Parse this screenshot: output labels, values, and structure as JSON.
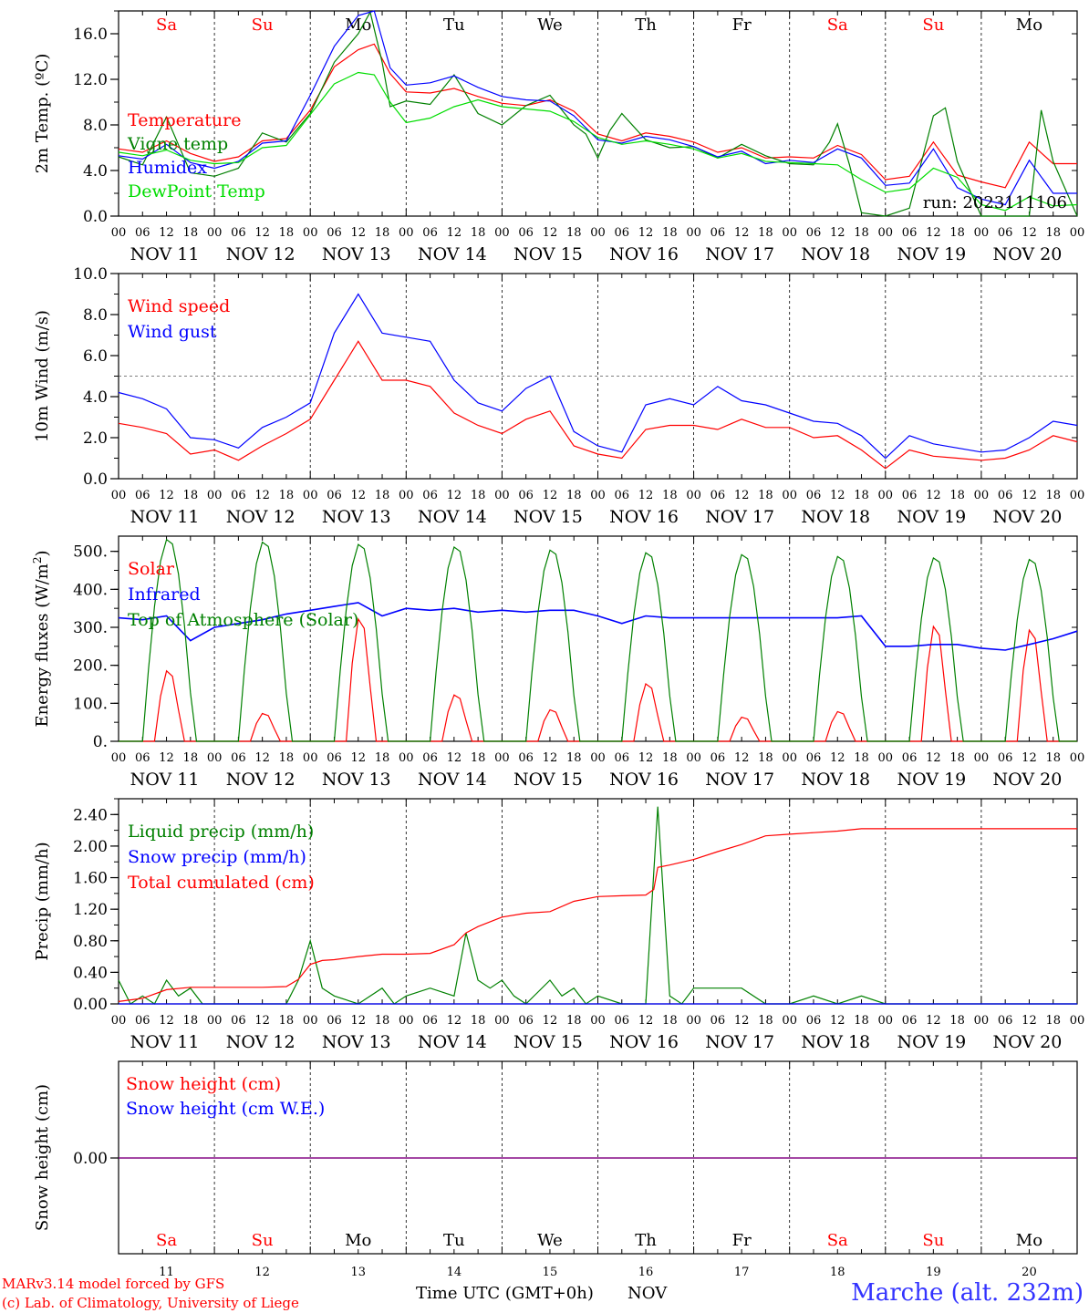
{
  "station": "Marche (alt. 232m)",
  "credit_line1": "MARv3.14 model forced by GFS",
  "credit_line2": "(c) Lab. of Climatology, University of Liege",
  "run_label": "run: 2023111106",
  "xlabel": "Time UTC (GMT+0h)",
  "month_label": "NOV",
  "hour_ticks": [
    "00",
    "06",
    "12",
    "18"
  ],
  "days": [
    {
      "date": "NOV 11",
      "dow": "Sa",
      "num": "11",
      "weekend": true
    },
    {
      "date": "NOV 12",
      "dow": "Su",
      "num": "12",
      "weekend": true
    },
    {
      "date": "NOV 13",
      "dow": "Mo",
      "num": "13",
      "weekend": false
    },
    {
      "date": "NOV 14",
      "dow": "Tu",
      "num": "14",
      "weekend": false
    },
    {
      "date": "NOV 15",
      "dow": "We",
      "num": "15",
      "weekend": false
    },
    {
      "date": "NOV 16",
      "dow": "Th",
      "num": "16",
      "weekend": false
    },
    {
      "date": "NOV 17",
      "dow": "Fr",
      "num": "17",
      "weekend": false
    },
    {
      "date": "NOV 18",
      "dow": "Sa",
      "num": "18",
      "weekend": true
    },
    {
      "date": "NOV 19",
      "dow": "Su",
      "num": "19",
      "weekend": true
    },
    {
      "date": "NOV 20",
      "dow": "Mo",
      "num": "20",
      "weekend": false
    }
  ],
  "colors": {
    "red": "#ff0000",
    "green": "#008000",
    "blue": "#0000ff",
    "lightgreen": "#00dd00",
    "weekend": "#ff0000",
    "snowline": "#800080",
    "station": "#3333ff"
  },
  "chart_data": [
    {
      "type": "line",
      "ylabel": "2m Temp. (ºC)",
      "ylim": [
        0,
        18
      ],
      "yticks": [
        0,
        4,
        8,
        12,
        16
      ],
      "ytick_labels": [
        "0.0",
        "4.0",
        "8.0",
        "12.0",
        "16.0"
      ],
      "x_unit": "hours since NOV 11 00 UTC",
      "series": [
        {
          "name": "Temperature",
          "color": "#ff0000",
          "x": [
            0,
            6,
            12,
            18,
            24,
            30,
            36,
            42,
            48,
            54,
            60,
            64,
            68,
            72,
            78,
            84,
            90,
            96,
            102,
            108,
            114,
            120,
            126,
            132,
            138,
            144,
            150,
            156,
            162,
            168,
            174,
            180,
            186,
            192,
            198,
            204,
            210,
            216,
            222,
            228,
            234,
            240
          ],
          "y": [
            5.9,
            5.6,
            6.6,
            5.5,
            4.8,
            5.2,
            6.6,
            6.8,
            9.3,
            13.1,
            14.6,
            15.1,
            12.5,
            10.9,
            10.8,
            11.2,
            10.5,
            9.9,
            9.7,
            10.2,
            9.2,
            7.2,
            6.6,
            7.3,
            7.0,
            6.5,
            5.6,
            6.0,
            5.1,
            5.2,
            5.1,
            6.2,
            5.4,
            3.2,
            3.5,
            6.5,
            3.6,
            3.0,
            2.5,
            6.5,
            4.6,
            4.6
          ]
        },
        {
          "name": "Vigne temp",
          "color": "#008000",
          "x": [
            0,
            6,
            12,
            18,
            24,
            30,
            36,
            42,
            48,
            54,
            60,
            63,
            66,
            68,
            72,
            78,
            84,
            90,
            96,
            102,
            108,
            114,
            117,
            120,
            123,
            126,
            132,
            138,
            144,
            150,
            156,
            162,
            168,
            174,
            178,
            180,
            183,
            186,
            192,
            198,
            204,
            207,
            210,
            216,
            222,
            228,
            231,
            234,
            240
          ],
          "y": [
            5.2,
            4.5,
            8.7,
            3.8,
            3.5,
            4.2,
            7.3,
            6.5,
            9.0,
            13.5,
            16.0,
            17.9,
            13.5,
            9.6,
            10.1,
            9.8,
            12.4,
            9.0,
            8.0,
            9.7,
            10.6,
            8.0,
            7.2,
            5.1,
            7.5,
            9.0,
            6.7,
            6.0,
            6.1,
            5.1,
            6.3,
            5.3,
            4.6,
            4.5,
            6.5,
            8.1,
            4.5,
            0.3,
            0.0,
            0.7,
            8.8,
            9.5,
            4.8,
            0.0,
            0.0,
            0.0,
            9.3,
            4.8,
            0.0
          ]
        },
        {
          "name": "Humidex",
          "color": "#0000ff",
          "x": [
            0,
            6,
            12,
            18,
            24,
            30,
            36,
            42,
            48,
            54,
            60,
            64,
            68,
            72,
            78,
            84,
            90,
            96,
            102,
            108,
            114,
            120,
            126,
            132,
            138,
            144,
            150,
            156,
            162,
            168,
            174,
            180,
            186,
            192,
            198,
            204,
            210,
            216,
            222,
            228,
            234,
            240
          ],
          "y": [
            5.3,
            5.0,
            6.3,
            4.7,
            4.2,
            4.8,
            6.4,
            6.6,
            10.6,
            14.9,
            17.6,
            18.0,
            13.0,
            11.5,
            11.7,
            12.3,
            11.3,
            10.5,
            10.2,
            10.1,
            8.8,
            6.7,
            6.4,
            7.0,
            6.7,
            6.1,
            5.2,
            5.7,
            4.6,
            4.9,
            4.7,
            5.9,
            5.1,
            2.7,
            2.9,
            5.9,
            2.5,
            1.5,
            1.0,
            4.9,
            2.0,
            2.0
          ]
        },
        {
          "name": "DewPoint Temp",
          "color": "#00dd00",
          "x": [
            0,
            6,
            12,
            18,
            24,
            30,
            36,
            42,
            48,
            54,
            60,
            64,
            68,
            72,
            78,
            84,
            90,
            96,
            102,
            108,
            114,
            120,
            126,
            132,
            138,
            144,
            150,
            156,
            162,
            168,
            174,
            180,
            186,
            192,
            198,
            204,
            210,
            216,
            222,
            228,
            234,
            240
          ],
          "y": [
            5.6,
            5.3,
            5.8,
            4.9,
            4.6,
            4.7,
            6.0,
            6.2,
            8.9,
            11.6,
            12.6,
            12.4,
            10.0,
            8.2,
            8.6,
            9.6,
            10.2,
            9.6,
            9.4,
            9.2,
            8.3,
            6.9,
            6.3,
            6.6,
            6.3,
            5.9,
            5.1,
            5.5,
            4.8,
            4.7,
            4.6,
            4.5,
            3.2,
            2.1,
            2.4,
            4.2,
            3.4,
            1.0,
            0.5,
            1.7,
            0.9,
            1.0
          ]
        }
      ]
    },
    {
      "type": "line",
      "ylabel": "10m Wind (m/s)",
      "ylim": [
        0,
        10
      ],
      "yticks": [
        0,
        2,
        4,
        6,
        8,
        10
      ],
      "ytick_labels": [
        "0.0",
        "2.0",
        "4.0",
        "6.0",
        "8.0",
        "10.0"
      ],
      "reference_line": 5,
      "series": [
        {
          "name": "Wind speed",
          "color": "#ff0000",
          "x": [
            0,
            6,
            12,
            18,
            24,
            30,
            36,
            42,
            48,
            54,
            60,
            66,
            72,
            78,
            84,
            90,
            96,
            102,
            108,
            114,
            120,
            126,
            132,
            138,
            144,
            150,
            156,
            162,
            168,
            174,
            180,
            186,
            192,
            198,
            204,
            210,
            216,
            222,
            228,
            234,
            240
          ],
          "y": [
            2.7,
            2.5,
            2.2,
            1.2,
            1.4,
            0.9,
            1.6,
            2.2,
            2.9,
            4.8,
            6.7,
            4.8,
            4.8,
            4.5,
            3.2,
            2.6,
            2.2,
            2.9,
            3.3,
            1.6,
            1.2,
            1.0,
            2.4,
            2.6,
            2.6,
            2.4,
            2.9,
            2.5,
            2.5,
            2.0,
            2.1,
            1.4,
            0.5,
            1.4,
            1.1,
            1.0,
            0.9,
            1.0,
            1.4,
            2.1,
            1.8
          ]
        },
        {
          "name": "Wind gust",
          "color": "#0000ff",
          "x": [
            0,
            6,
            12,
            18,
            24,
            30,
            36,
            42,
            48,
            54,
            60,
            66,
            72,
            78,
            84,
            90,
            96,
            102,
            108,
            114,
            120,
            126,
            132,
            138,
            144,
            150,
            156,
            162,
            168,
            174,
            180,
            186,
            192,
            198,
            204,
            210,
            216,
            222,
            228,
            234,
            240
          ],
          "y": [
            4.2,
            3.9,
            3.4,
            2.0,
            1.9,
            1.5,
            2.5,
            3.0,
            3.7,
            7.1,
            9.0,
            7.1,
            6.9,
            6.7,
            4.8,
            3.7,
            3.3,
            4.4,
            5.0,
            2.3,
            1.6,
            1.3,
            3.6,
            3.9,
            3.6,
            4.5,
            3.8,
            3.6,
            3.2,
            2.8,
            2.7,
            2.1,
            1.0,
            2.1,
            1.7,
            1.5,
            1.3,
            1.4,
            2.0,
            2.8,
            2.6
          ]
        }
      ]
    },
    {
      "type": "line",
      "ylabel": "Energy fluxes (W/m²)",
      "ylim": [
        0,
        540
      ],
      "yticks": [
        0,
        100,
        200,
        300,
        400,
        500
      ],
      "ytick_labels": [
        "0.",
        "100.",
        "200.",
        "300.",
        "400.",
        "500."
      ],
      "series": [
        {
          "name": "Solar",
          "color": "#ff0000",
          "peaks": [
            190,
            75,
            330,
            125,
            85,
            155,
            65,
            80,
            310,
            300
          ]
        },
        {
          "name": "Infrared",
          "color": "#0000ff",
          "x": [
            0,
            6,
            12,
            18,
            24,
            30,
            36,
            42,
            48,
            54,
            60,
            66,
            72,
            78,
            84,
            90,
            96,
            102,
            108,
            114,
            120,
            126,
            132,
            138,
            144,
            150,
            156,
            162,
            168,
            174,
            180,
            186,
            192,
            198,
            204,
            210,
            216,
            222,
            228,
            234,
            240
          ],
          "y": [
            325,
            320,
            330,
            265,
            300,
            310,
            320,
            335,
            345,
            355,
            365,
            330,
            350,
            345,
            350,
            340,
            345,
            340,
            345,
            345,
            330,
            310,
            330,
            325,
            325,
            325,
            325,
            325,
            325,
            325,
            325,
            330,
            250,
            250,
            255,
            255,
            245,
            240,
            255,
            270,
            290
          ]
        },
        {
          "name": "Top of Atmosphere (Solar)",
          "color": "#008000",
          "peaks": [
            535,
            528,
            522,
            515,
            507,
            500,
            495,
            490,
            486,
            482
          ]
        }
      ]
    },
    {
      "type": "line",
      "ylabel": "Precip (mm/h)",
      "ylim": [
        0,
        2.6
      ],
      "yticks": [
        0,
        0.4,
        0.8,
        1.2,
        1.6,
        2.0,
        2.4
      ],
      "ytick_labels": [
        "0.00",
        "0.40",
        "0.80",
        "1.20",
        "1.60",
        "2.00",
        "2.40"
      ],
      "series": [
        {
          "name": "Liquid precip (mm/h)",
          "color": "#008000",
          "x": [
            0,
            3,
            6,
            9,
            12,
            15,
            18,
            21,
            24,
            30,
            36,
            42,
            45,
            48,
            51,
            54,
            60,
            66,
            69,
            72,
            78,
            84,
            87,
            90,
            93,
            96,
            99,
            102,
            108,
            111,
            114,
            117,
            120,
            126,
            132,
            135,
            138,
            141,
            144,
            150,
            156,
            162,
            168,
            174,
            180,
            186,
            192,
            198,
            204,
            210,
            216,
            222,
            228,
            234,
            240
          ],
          "y": [
            0.3,
            0.0,
            0.1,
            0.0,
            0.3,
            0.1,
            0.2,
            0.0,
            0.0,
            0.0,
            0.0,
            0.0,
            0.3,
            0.8,
            0.2,
            0.1,
            0.0,
            0.2,
            0.0,
            0.1,
            0.2,
            0.1,
            0.9,
            0.3,
            0.2,
            0.3,
            0.1,
            0.0,
            0.3,
            0.1,
            0.2,
            0.0,
            0.1,
            0.0,
            0.0,
            2.5,
            0.1,
            0.0,
            0.2,
            0.2,
            0.2,
            0.0,
            0.0,
            0.1,
            0.0,
            0.1,
            0.0,
            0.0,
            0.0,
            0.0,
            0.0,
            0.0,
            0.0,
            0.0,
            0.0
          ]
        },
        {
          "name": "Snow precip (mm/h)",
          "color": "#0000ff",
          "x": [
            0,
            240
          ],
          "y": [
            0,
            0
          ]
        },
        {
          "name": "Total cumulated (cm)",
          "color": "#ff0000",
          "x": [
            0,
            6,
            12,
            18,
            24,
            36,
            42,
            45,
            48,
            51,
            54,
            60,
            66,
            72,
            78,
            84,
            87,
            90,
            96,
            102,
            108,
            114,
            120,
            126,
            132,
            134,
            135,
            138,
            144,
            150,
            156,
            162,
            168,
            174,
            180,
            186,
            192,
            198,
            204,
            210,
            216,
            222,
            228,
            234,
            240
          ],
          "y": [
            0.03,
            0.07,
            0.18,
            0.21,
            0.21,
            0.21,
            0.22,
            0.31,
            0.5,
            0.55,
            0.56,
            0.6,
            0.63,
            0.63,
            0.64,
            0.75,
            0.9,
            0.98,
            1.1,
            1.15,
            1.17,
            1.3,
            1.36,
            1.37,
            1.38,
            1.45,
            1.73,
            1.76,
            1.83,
            1.93,
            2.02,
            2.13,
            2.15,
            2.17,
            2.19,
            2.22,
            2.22,
            2.22,
            2.22,
            2.22,
            2.22,
            2.22,
            2.22,
            2.22,
            2.22
          ]
        }
      ]
    },
    {
      "type": "line",
      "ylabel": "Snow height (cm)",
      "ytick_labels": [
        "0.00"
      ],
      "series": [
        {
          "name": "Snow height (cm)",
          "color": "#ff0000",
          "x": [
            0,
            240
          ],
          "y": [
            0,
            0
          ]
        },
        {
          "name": "Snow height (cm W.E.)",
          "color": "#0000ff",
          "x": [
            0,
            240
          ],
          "y": [
            0,
            0
          ]
        }
      ]
    }
  ]
}
